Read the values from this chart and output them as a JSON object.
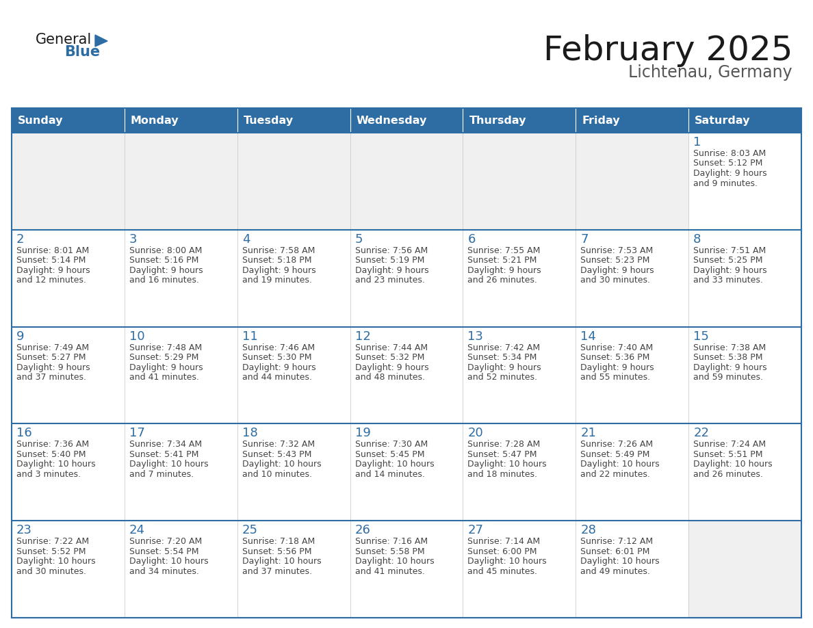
{
  "title": "February 2025",
  "subtitle": "Lichtenau, Germany",
  "days_of_week": [
    "Sunday",
    "Monday",
    "Tuesday",
    "Wednesday",
    "Thursday",
    "Friday",
    "Saturday"
  ],
  "header_bg": "#2e6da4",
  "header_text": "#ffffff",
  "cell_bg_filled": "#ffffff",
  "cell_bg_empty": "#f0f0f0",
  "row_sep_color": "#2e6da4",
  "col_sep_color": "#cccccc",
  "day_number_color": "#2e6da4",
  "text_color": "#444444",
  "title_color": "#1a1a1a",
  "subtitle_color": "#555555",
  "logo_general_color": "#1a1a1a",
  "logo_blue_color": "#2e6da4",
  "calendar_data": [
    [
      null,
      null,
      null,
      null,
      null,
      null,
      {
        "day": 1,
        "sunrise": "8:03 AM",
        "sunset": "5:12 PM",
        "daylight": "9 hours and 9 minutes."
      }
    ],
    [
      {
        "day": 2,
        "sunrise": "8:01 AM",
        "sunset": "5:14 PM",
        "daylight": "9 hours and 12 minutes."
      },
      {
        "day": 3,
        "sunrise": "8:00 AM",
        "sunset": "5:16 PM",
        "daylight": "9 hours and 16 minutes."
      },
      {
        "day": 4,
        "sunrise": "7:58 AM",
        "sunset": "5:18 PM",
        "daylight": "9 hours and 19 minutes."
      },
      {
        "day": 5,
        "sunrise": "7:56 AM",
        "sunset": "5:19 PM",
        "daylight": "9 hours and 23 minutes."
      },
      {
        "day": 6,
        "sunrise": "7:55 AM",
        "sunset": "5:21 PM",
        "daylight": "9 hours and 26 minutes."
      },
      {
        "day": 7,
        "sunrise": "7:53 AM",
        "sunset": "5:23 PM",
        "daylight": "9 hours and 30 minutes."
      },
      {
        "day": 8,
        "sunrise": "7:51 AM",
        "sunset": "5:25 PM",
        "daylight": "9 hours and 33 minutes."
      }
    ],
    [
      {
        "day": 9,
        "sunrise": "7:49 AM",
        "sunset": "5:27 PM",
        "daylight": "9 hours and 37 minutes."
      },
      {
        "day": 10,
        "sunrise": "7:48 AM",
        "sunset": "5:29 PM",
        "daylight": "9 hours and 41 minutes."
      },
      {
        "day": 11,
        "sunrise": "7:46 AM",
        "sunset": "5:30 PM",
        "daylight": "9 hours and 44 minutes."
      },
      {
        "day": 12,
        "sunrise": "7:44 AM",
        "sunset": "5:32 PM",
        "daylight": "9 hours and 48 minutes."
      },
      {
        "day": 13,
        "sunrise": "7:42 AM",
        "sunset": "5:34 PM",
        "daylight": "9 hours and 52 minutes."
      },
      {
        "day": 14,
        "sunrise": "7:40 AM",
        "sunset": "5:36 PM",
        "daylight": "9 hours and 55 minutes."
      },
      {
        "day": 15,
        "sunrise": "7:38 AM",
        "sunset": "5:38 PM",
        "daylight": "9 hours and 59 minutes."
      }
    ],
    [
      {
        "day": 16,
        "sunrise": "7:36 AM",
        "sunset": "5:40 PM",
        "daylight": "10 hours and 3 minutes."
      },
      {
        "day": 17,
        "sunrise": "7:34 AM",
        "sunset": "5:41 PM",
        "daylight": "10 hours and 7 minutes."
      },
      {
        "day": 18,
        "sunrise": "7:32 AM",
        "sunset": "5:43 PM",
        "daylight": "10 hours and 10 minutes."
      },
      {
        "day": 19,
        "sunrise": "7:30 AM",
        "sunset": "5:45 PM",
        "daylight": "10 hours and 14 minutes."
      },
      {
        "day": 20,
        "sunrise": "7:28 AM",
        "sunset": "5:47 PM",
        "daylight": "10 hours and 18 minutes."
      },
      {
        "day": 21,
        "sunrise": "7:26 AM",
        "sunset": "5:49 PM",
        "daylight": "10 hours and 22 minutes."
      },
      {
        "day": 22,
        "sunrise": "7:24 AM",
        "sunset": "5:51 PM",
        "daylight": "10 hours and 26 minutes."
      }
    ],
    [
      {
        "day": 23,
        "sunrise": "7:22 AM",
        "sunset": "5:52 PM",
        "daylight": "10 hours and 30 minutes."
      },
      {
        "day": 24,
        "sunrise": "7:20 AM",
        "sunset": "5:54 PM",
        "daylight": "10 hours and 34 minutes."
      },
      {
        "day": 25,
        "sunrise": "7:18 AM",
        "sunset": "5:56 PM",
        "daylight": "10 hours and 37 minutes."
      },
      {
        "day": 26,
        "sunrise": "7:16 AM",
        "sunset": "5:58 PM",
        "daylight": "10 hours and 41 minutes."
      },
      {
        "day": 27,
        "sunrise": "7:14 AM",
        "sunset": "6:00 PM",
        "daylight": "10 hours and 45 minutes."
      },
      {
        "day": 28,
        "sunrise": "7:12 AM",
        "sunset": "6:01 PM",
        "daylight": "10 hours and 49 minutes."
      },
      null
    ]
  ]
}
